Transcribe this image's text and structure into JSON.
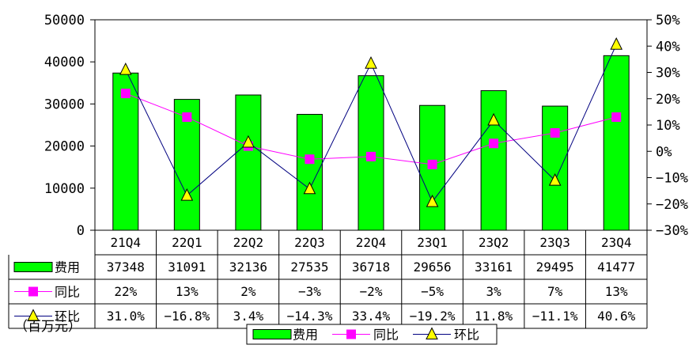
{
  "chart_data": {
    "type": "bar",
    "categories": [
      "21Q4",
      "22Q1",
      "22Q2",
      "22Q3",
      "22Q4",
      "23Q1",
      "23Q2",
      "23Q3",
      "23Q4"
    ],
    "series": [
      {
        "name": "费用",
        "type": "bar",
        "axis": "left",
        "color": "#00FF00",
        "values": [
          37348,
          31091,
          32136,
          27535,
          36718,
          29656,
          33161,
          29495,
          41477
        ],
        "table": [
          "37348",
          "31091",
          "32136",
          "27535",
          "36718",
          "29656",
          "33161",
          "29495",
          "41477"
        ]
      },
      {
        "name": "同比",
        "type": "line",
        "axis": "right",
        "color": "#FF00FF",
        "marker": "square",
        "values": [
          22,
          13,
          2,
          -3,
          -2,
          -5,
          3,
          7,
          13
        ],
        "table": [
          "22%",
          "13%",
          "2%",
          "-3%",
          "-2%",
          "-5%",
          "3%",
          "7%",
          "13%"
        ]
      },
      {
        "name": "环比",
        "type": "line",
        "axis": "right",
        "color": "#000080",
        "marker": "triangle",
        "marker_color": "#FFFF00",
        "values": [
          31.0,
          -16.8,
          3.4,
          -14.3,
          33.4,
          -19.2,
          11.8,
          -11.1,
          40.6
        ],
        "table": [
          "31.0%",
          "-16.8%",
          "3.4%",
          "-14.3%",
          "33.4%",
          "-19.2%",
          "11.8%",
          "-11.1%",
          "40.6%"
        ]
      }
    ],
    "y_left": {
      "min": 0,
      "max": 50000,
      "ticks": [
        "0",
        "10000",
        "20000",
        "30000",
        "40000",
        "50000"
      ]
    },
    "y_right": {
      "min": -30,
      "max": 50,
      "ticks": [
        "-30%",
        "-20%",
        "-10%",
        "0%",
        "10%",
        "20%",
        "30%",
        "40%",
        "50%"
      ]
    },
    "unit_label": "（百万元）",
    "legend_position": "bottom",
    "grid": false
  }
}
